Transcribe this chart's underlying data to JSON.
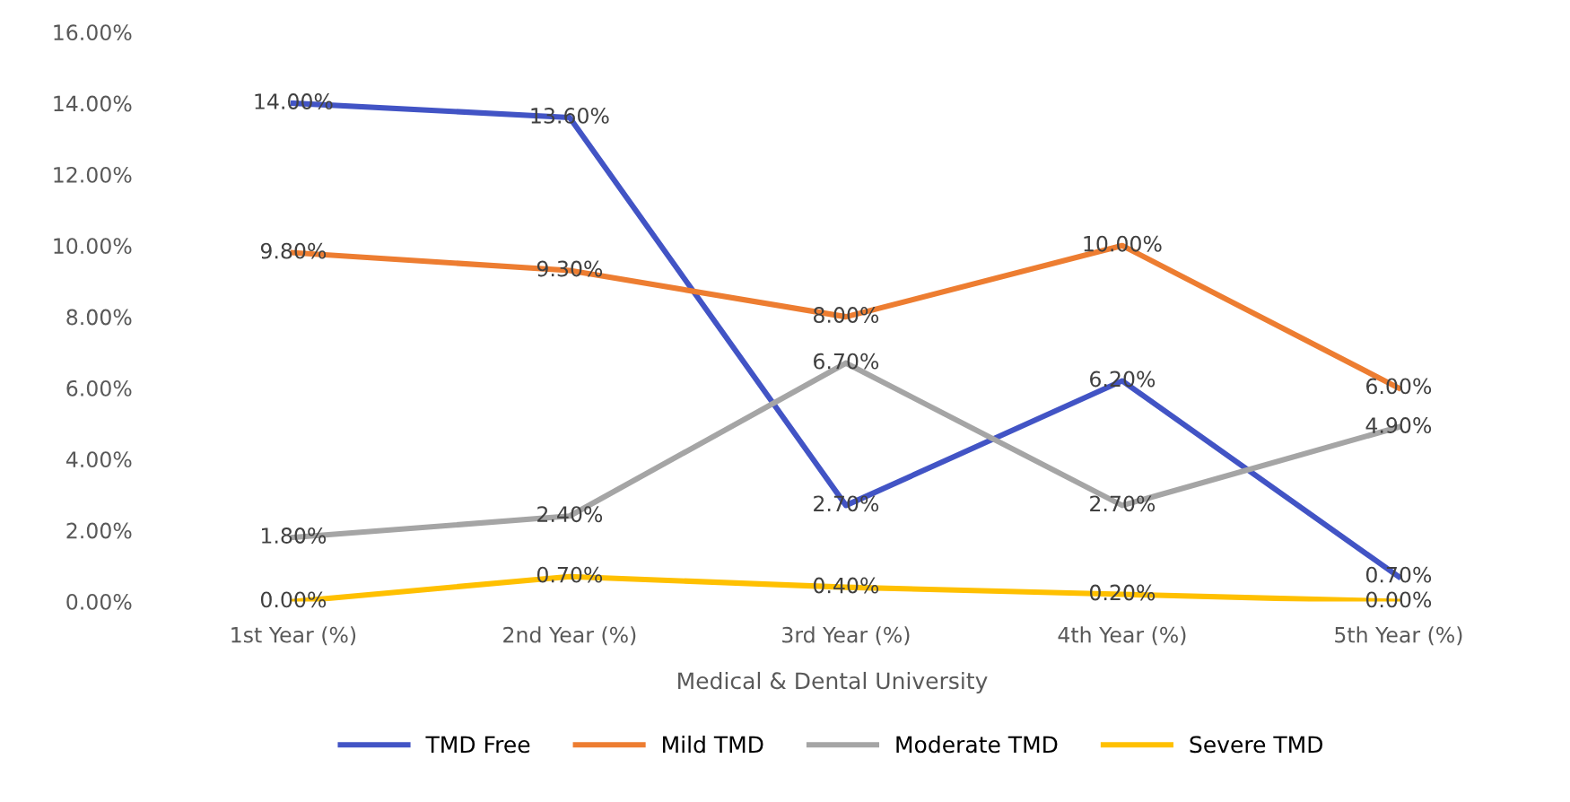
{
  "chart_data": {
    "type": "line",
    "xlabel": "Medical & Dental University",
    "categories": [
      "1st Year (%)",
      "2nd Year (%)",
      "3rd Year (%)",
      "4th Year (%)",
      "5th Year (%)"
    ],
    "series": [
      {
        "name": "TMD Free",
        "color": "#4254c5",
        "values": [
          14.0,
          13.6,
          2.7,
          6.2,
          0.7
        ],
        "value_labels": [
          "14.00%",
          "13.60%",
          "2.70%",
          "6.20%",
          "0.70%"
        ]
      },
      {
        "name": "Mild TMD",
        "color": "#ed7d31",
        "values": [
          9.8,
          9.3,
          8.0,
          10.0,
          6.0
        ],
        "value_labels": [
          "9.80%",
          "9.30%",
          "8.00%",
          "10.00%",
          "6.00%"
        ]
      },
      {
        "name": "Moderate TMD",
        "color": "#a5a5a5",
        "values": [
          1.8,
          2.4,
          6.7,
          2.7,
          4.9
        ],
        "value_labels": [
          "1.80%",
          "2.40%",
          "6.70%",
          "2.70%",
          "4.90%"
        ]
      },
      {
        "name": "Severe TMD",
        "color": "#ffc000",
        "values": [
          0.0,
          0.7,
          0.4,
          0.2,
          0.0
        ],
        "value_labels": [
          "0.00%",
          "0.70%",
          "0.40%",
          "0.20%",
          "0.00%"
        ]
      }
    ],
    "ylim": [
      0,
      16
    ],
    "yticks": [
      {
        "value": 0,
        "label": "0.00%"
      },
      {
        "value": 2,
        "label": "2.00%"
      },
      {
        "value": 4,
        "label": "4.00%"
      },
      {
        "value": 6,
        "label": "6.00%"
      },
      {
        "value": 8,
        "label": "8.00%"
      },
      {
        "value": 10,
        "label": "10.00%"
      },
      {
        "value": 12,
        "label": "12.00%"
      },
      {
        "value": 14,
        "label": "14.00%"
      },
      {
        "value": 16,
        "label": "16.00%"
      }
    ],
    "grid": false,
    "legend": "bottom",
    "line_style": "solid"
  }
}
